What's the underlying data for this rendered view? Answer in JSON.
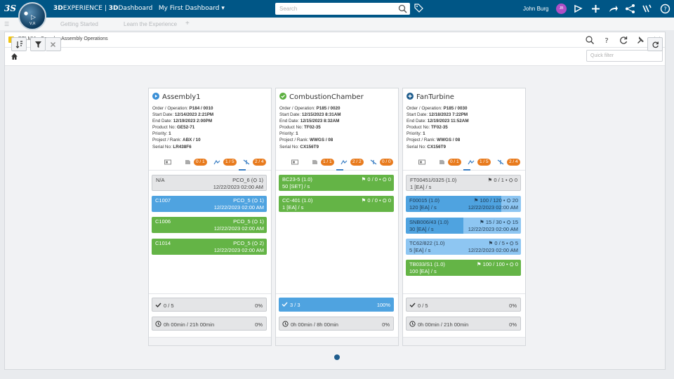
{
  "topbar": {
    "compass_label": "V,R",
    "brand_bold": "3D",
    "brand_rest": "EXPERIENCE | ",
    "dashboard_bold": "3D",
    "dashboard_rest": "Dashboard",
    "dashboard_name": "My First Dashboard",
    "search_placeholder": "Search",
    "user_name": "John Burg",
    "user_initials": "JB"
  },
  "subbar": {
    "tab1": "Getting Started",
    "tab2": "Learn the Experience"
  },
  "panel": {
    "title": "DELMIA - Complex Assembly Operations",
    "quick_filter_placeholder": "Quick filter"
  },
  "colors": {
    "green": "#64b446",
    "blue": "#4fa3e0",
    "light_blue": "#8ec6f2",
    "orange": "#e87b1e",
    "header": "#005686"
  },
  "cards": [
    {
      "title": "Assembly1",
      "status_icon": "play-icon",
      "info": {
        "order_label": "Order / Operation: ",
        "order": "P184 / 0010",
        "start_label": "Start Date: ",
        "start": "12/14/2023 2:21PM",
        "end_label": "End Date: ",
        "end": "12/19/2023 2:00PM",
        "product_label": "Product No: ",
        "product": "GE52-71",
        "priority_label": "Priority: ",
        "priority": "1",
        "project_label": "Project / Rank: ",
        "project": "ABX / 10",
        "serial_label": "Serial No: ",
        "serial": "LR438F6"
      },
      "tabs": [
        "",
        "0 / 1",
        "1 / 5",
        "2 / 4"
      ],
      "items": [
        {
          "l1": "N/A",
          "r1": "PCO_6 (⛭ 1)",
          "l2": "",
          "r2": "12/22/2023 02:00 AM",
          "style": "gr"
        },
        {
          "l1": "C1007",
          "r1": "PCO_5 (⛭ 1)",
          "l2": "",
          "r2": "12/22/2023 02:00 AM",
          "style": "b"
        },
        {
          "l1": "C1006",
          "r1": "PCO_5 (⛭ 1)",
          "l2": "",
          "r2": "12/22/2023 02:00 AM",
          "style": "g"
        },
        {
          "l1": "C1014",
          "r1": "PCO_5 (⛭ 2)",
          "l2": "",
          "r2": "12/22/2023 02:00 AM",
          "style": "g"
        }
      ],
      "progress": "0 / 5",
      "progress_pct": "0%",
      "progress_style": "gr",
      "time": "0h 00min / 21h 00min",
      "time_pct": "0%"
    },
    {
      "title": "CombustionChamber",
      "status_icon": "check-icon",
      "info": {
        "order_label": "Order / Operation: ",
        "order": "P185 / 0020",
        "start_label": "Start Date: ",
        "start": "12/15/2023 8:31AM",
        "end_label": "End Date: ",
        "end": "12/15/2023 8:32AM",
        "product_label": "Product No: ",
        "product": "TF02-35",
        "priority_label": "Priority: ",
        "priority": "1",
        "project_label": "Project / Rank: ",
        "project": "WWGS / 08",
        "serial_label": "Serial No: ",
        "serial": "CX156T9"
      },
      "tabs": [
        "",
        "1 / 1",
        "2 / 2",
        "0 / 0"
      ],
      "items": [
        {
          "l1": "BC23-5 (1.0)",
          "r1": "⚑ 0 / 0 • ⛭ 0",
          "l2": "50 [SET] / s",
          "r2": "",
          "style": "g"
        },
        {
          "l1": "CC-401 (1.0)",
          "r1": "⚑ 0 / 0 • ⛭ 0",
          "l2": "1 [EA] / s",
          "r2": "",
          "style": "g"
        }
      ],
      "progress": "3 / 3",
      "progress_pct": "100%",
      "progress_style": "b",
      "time": "0h 00min / 8h 00min",
      "time_pct": "0%"
    },
    {
      "title": "FanTurbine",
      "status_icon": "plus-icon",
      "info": {
        "order_label": "Order / Operation: ",
        "order": "P185 / 0030",
        "start_label": "Start Date: ",
        "start": "12/18/2023 7:22PM",
        "end_label": "End Date: ",
        "end": "12/19/2023 11:52AM",
        "product_label": "Product No: ",
        "product": "TF02-35",
        "priority_label": "Priority: ",
        "priority": "1",
        "project_label": "Project / Rank: ",
        "project": "WWGS / 08",
        "serial_label": "Serial No: ",
        "serial": "CX156T9"
      },
      "tabs": [
        "",
        "0 / 1",
        "1 / 5",
        "2 / 4"
      ],
      "items": [
        {
          "l1": "FT00451/0325 (1.0)",
          "r1": "⚑ 0 / 1 • ⛭ 0",
          "l2": "1 [EA] / s",
          "r2": "",
          "style": "gr"
        },
        {
          "l1": "F00015 (1.0)",
          "r1": "⚑ 100 / 120 • ⛭ 20",
          "l2": "120 [EA] / s",
          "r2": "12/22/2023 02:00 AM",
          "style": "split",
          "fill": 0.83
        },
        {
          "l1": "SNB006/43 (1.0)",
          "r1": "⚑ 15 / 30 • ⛭ 15",
          "l2": "30 [EA] / s",
          "r2": "12/22/2023 02:00 AM",
          "style": "split",
          "fill": 0.5
        },
        {
          "l1": "TC62/822 (1.0)",
          "r1": "⚑ 0 / 5 • ⛭ 5",
          "l2": "5 [EA] / s",
          "r2": "12/22/2023 02:00 AM",
          "style": "lb"
        },
        {
          "l1": "TB033/S1 (1.0)",
          "r1": "⚑ 100 / 100 • ⛭ 0",
          "l2": "100 [EA] / s",
          "r2": "",
          "style": "g"
        }
      ],
      "progress": "0 / 5",
      "progress_pct": "0%",
      "progress_style": "gr",
      "time": "0h 00min / 21h 00min",
      "time_pct": "0%"
    }
  ]
}
